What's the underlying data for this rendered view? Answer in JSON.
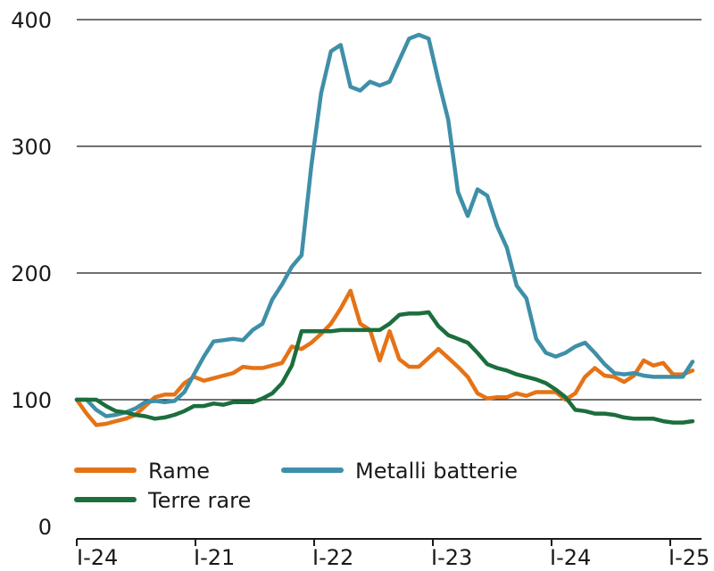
{
  "chart_data": {
    "type": "line",
    "title": "",
    "xlabel": "",
    "ylabel": "",
    "ylim": [
      0,
      400
    ],
    "yticks": [
      0,
      100,
      200,
      300,
      400
    ],
    "ytick_labels": [
      "0",
      "100",
      "200",
      "300",
      "400"
    ],
    "xtick_labels": [
      "I-24",
      "I-21",
      "I-22",
      "I-23",
      "I-24",
      "I-25"
    ],
    "grid": "horizontal",
    "legend_position": "bottom-left",
    "series": [
      {
        "name": "Rame",
        "color": "#e57316",
        "values": [
          100,
          89,
          80,
          81,
          83,
          85,
          88,
          95,
          102,
          104,
          104,
          113,
          118,
          115,
          117,
          119,
          121,
          126,
          125,
          125,
          127,
          129,
          142,
          140,
          145,
          152,
          160,
          172,
          186,
          160,
          155,
          131,
          154,
          132,
          126,
          126,
          133,
          140,
          133,
          126,
          118,
          105,
          101,
          102,
          102,
          105,
          103,
          106,
          106,
          106,
          100,
          105,
          118,
          125,
          119,
          118,
          114,
          119,
          131,
          127,
          129,
          120,
          120,
          123
        ]
      },
      {
        "name": "Metalli batterie",
        "color": "#3f8fa8",
        "values": [
          100,
          100,
          92,
          87,
          88,
          90,
          93,
          98,
          99,
          98,
          99,
          106,
          120,
          134,
          146,
          147,
          148,
          147,
          155,
          160,
          179,
          191,
          205,
          214,
          285,
          342,
          375,
          380,
          347,
          344,
          351,
          348,
          351,
          368,
          385,
          388,
          385,
          352,
          321,
          264,
          245,
          266,
          261,
          237,
          220,
          190,
          180,
          148,
          137,
          134,
          137,
          142,
          145,
          137,
          128,
          121,
          120,
          121,
          119,
          118,
          118,
          118,
          118,
          130
        ]
      },
      {
        "name": "Terre rare",
        "color": "#1c6e3d",
        "values": [
          100,
          100,
          100,
          95,
          91,
          90,
          88,
          87,
          85,
          86,
          88,
          91,
          95,
          95,
          97,
          96,
          98,
          98,
          98,
          101,
          105,
          113,
          127,
          154,
          154,
          154,
          154,
          155,
          155,
          155,
          155,
          155,
          160,
          167,
          168,
          168,
          169,
          158,
          151,
          148,
          145,
          137,
          128,
          125,
          123,
          120,
          118,
          116,
          113,
          108,
          102,
          92,
          91,
          89,
          89,
          88,
          86,
          85,
          85,
          85,
          83,
          82,
          82,
          83
        ]
      }
    ]
  }
}
